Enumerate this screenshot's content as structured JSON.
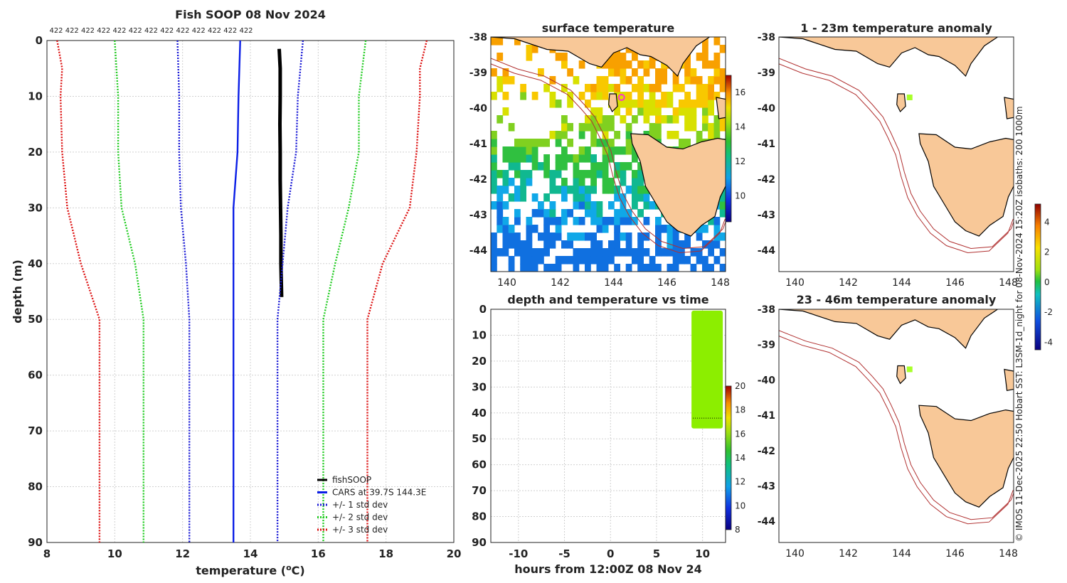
{
  "chart_data": [
    {
      "type": "line",
      "title": "Fish SOOP 08 Nov 2024",
      "top_counts": [
        "422",
        "422",
        "422",
        "422",
        "422",
        "422",
        "422",
        "422",
        "422",
        "422",
        "422",
        "422",
        "422"
      ],
      "xlabel_main": "temperature (",
      "xlabel_sup": "o",
      "xlabel_tail": "C)",
      "ylabel": "depth (m)",
      "xlim": [
        8,
        20
      ],
      "ylim": [
        90,
        0
      ],
      "xticks": [
        8,
        10,
        12,
        14,
        16,
        18,
        20
      ],
      "yticks": [
        0,
        10,
        20,
        30,
        40,
        50,
        60,
        70,
        80,
        90
      ],
      "legend_position": "bottom-right",
      "series": [
        {
          "name": "fishSOOP",
          "color": "#000000",
          "style": "solid",
          "points": [
            [
              14.85,
              1.5
            ],
            [
              14.88,
              5
            ],
            [
              14.88,
              10
            ],
            [
              14.87,
              15
            ],
            [
              14.88,
              20
            ],
            [
              14.88,
              25
            ],
            [
              14.89,
              30
            ],
            [
              14.9,
              35
            ],
            [
              14.9,
              40
            ],
            [
              14.92,
              46
            ]
          ]
        },
        {
          "name": "CARS at 39.7S 144.3E",
          "color": "#0a1ee6",
          "style": "solid",
          "points": [
            [
              13.7,
              0
            ],
            [
              13.65,
              10
            ],
            [
              13.62,
              20
            ],
            [
              13.5,
              30
            ],
            [
              13.5,
              40
            ],
            [
              13.5,
              50
            ],
            [
              13.5,
              60
            ],
            [
              13.5,
              70
            ],
            [
              13.5,
              80
            ],
            [
              13.5,
              90
            ]
          ]
        },
        {
          "name": "+/- 1 std dev",
          "color": "#1a1ad6",
          "style": "dotted",
          "points": [
            [
              11.85,
              0
            ],
            [
              11.9,
              10
            ],
            [
              11.9,
              20
            ],
            [
              11.95,
              30
            ],
            [
              12.1,
              40
            ],
            [
              12.2,
              50
            ],
            [
              12.2,
              60
            ],
            [
              12.2,
              70
            ],
            [
              12.2,
              80
            ],
            [
              12.2,
              90
            ]
          ]
        },
        {
          "name": "+/- 1 std dev (upper)",
          "legend": false,
          "color": "#1a1ad6",
          "style": "dotted",
          "points": [
            [
              15.55,
              0
            ],
            [
              15.4,
              10
            ],
            [
              15.35,
              20
            ],
            [
              15.1,
              30
            ],
            [
              14.95,
              40
            ],
            [
              14.8,
              50
            ],
            [
              14.8,
              60
            ],
            [
              14.8,
              70
            ],
            [
              14.8,
              80
            ],
            [
              14.8,
              90
            ]
          ]
        },
        {
          "name": "+/- 2 std dev",
          "color": "#22cc22",
          "style": "dotted",
          "points": [
            [
              10.0,
              0
            ],
            [
              10.1,
              10
            ],
            [
              10.1,
              20
            ],
            [
              10.2,
              30
            ],
            [
              10.6,
              40
            ],
            [
              10.85,
              50
            ],
            [
              10.85,
              60
            ],
            [
              10.85,
              70
            ],
            [
              10.85,
              80
            ],
            [
              10.85,
              90
            ]
          ]
        },
        {
          "name": "+/- 2 std dev (upper)",
          "legend": false,
          "color": "#22cc22",
          "style": "dotted",
          "points": [
            [
              17.4,
              0
            ],
            [
              17.2,
              10
            ],
            [
              17.2,
              20
            ],
            [
              16.9,
              30
            ],
            [
              16.5,
              40
            ],
            [
              16.15,
              50
            ],
            [
              16.15,
              60
            ],
            [
              16.15,
              70
            ],
            [
              16.15,
              80
            ],
            [
              16.15,
              90
            ]
          ]
        },
        {
          "name": "+/- 3 std dev",
          "color": "#dd1111",
          "style": "dotted",
          "points": [
            [
              8.3,
              0
            ],
            [
              8.45,
              5
            ],
            [
              8.4,
              10
            ],
            [
              8.45,
              20
            ],
            [
              8.6,
              30
            ],
            [
              9.0,
              40
            ],
            [
              9.55,
              50
            ],
            [
              9.55,
              60
            ],
            [
              9.55,
              70
            ],
            [
              9.55,
              80
            ],
            [
              9.55,
              90
            ]
          ]
        },
        {
          "name": "+/- 3 std dev (upper)",
          "legend": false,
          "color": "#dd1111",
          "style": "dotted",
          "points": [
            [
              19.2,
              0
            ],
            [
              19.0,
              5
            ],
            [
              19.0,
              10
            ],
            [
              18.9,
              20
            ],
            [
              18.7,
              30
            ],
            [
              17.9,
              40
            ],
            [
              17.45,
              50
            ],
            [
              17.45,
              60
            ],
            [
              17.45,
              70
            ],
            [
              17.45,
              80
            ],
            [
              17.45,
              90
            ]
          ]
        }
      ]
    },
    {
      "type": "heatmap",
      "title": "surface temperature",
      "xlim": [
        139.4,
        148.2
      ],
      "ylim": [
        -44.6,
        -38
      ],
      "xticks": [
        140,
        142,
        144,
        146,
        148
      ],
      "yticks": [
        -38,
        -39,
        -40,
        -41,
        -42,
        -43,
        -44
      ],
      "colorbar": {
        "ticks": [
          10,
          12,
          14,
          16
        ],
        "range": [
          8.5,
          17
        ]
      },
      "marker": {
        "lon": 144.3,
        "lat": -39.7,
        "color": "#ff33cc"
      }
    },
    {
      "type": "scatter",
      "title": "depth and temperature vs time",
      "xlabel": "hours from 12:00Z 08 Nov 24",
      "xlim": [
        -13,
        12.5
      ],
      "ylim": [
        90,
        0
      ],
      "xticks": [
        -10,
        -5,
        0,
        5,
        10
      ],
      "yticks": [
        0,
        10,
        20,
        30,
        40,
        50,
        60,
        70,
        80,
        90
      ],
      "colorbar": {
        "ticks": [
          8,
          10,
          12,
          14,
          16,
          18,
          20
        ],
        "range": [
          8,
          20
        ]
      },
      "data_block": {
        "hours": [
          8.8,
          12.2
        ],
        "depth": [
          0.5,
          46
        ],
        "temperature": 14.9,
        "color": "#8cee00"
      }
    },
    {
      "type": "heatmap",
      "title": "1 - 23m temperature anomaly",
      "xlim": [
        139.4,
        148.2
      ],
      "ylim": [
        -44.6,
        -38
      ],
      "xticks": [
        140,
        142,
        144,
        146,
        148
      ],
      "yticks": [
        -38,
        -39,
        -40,
        -41,
        -42,
        -43,
        -44
      ],
      "marker": {
        "lon": 144.3,
        "lat": -39.7,
        "color": "#a8ff2a"
      }
    },
    {
      "type": "heatmap",
      "title": "23 - 46m temperature anomaly",
      "xlim": [
        139.4,
        148.2
      ],
      "ylim": [
        -44.6,
        -38
      ],
      "xticks": [
        140,
        142,
        144,
        146,
        148
      ],
      "yticks": [
        -38,
        -39,
        -40,
        -41,
        -42,
        -43,
        -44
      ],
      "marker": {
        "lon": 144.3,
        "lat": -39.7,
        "color": "#a8ff2a"
      },
      "colorbar": {
        "ticks": [
          -4,
          -2,
          0,
          2,
          4
        ],
        "range": [
          -4.5,
          5.2
        ]
      }
    }
  ],
  "side_note": "© IMOS 11-Dec-2025 22:50 Hobart SST: L3SM-1d_night for 08-Nov-2024 15:20Z isobaths: 200  1000m",
  "colors": {
    "land": "#f8c898",
    "isobath": "#b03030",
    "grid": "#d0d0d0"
  }
}
